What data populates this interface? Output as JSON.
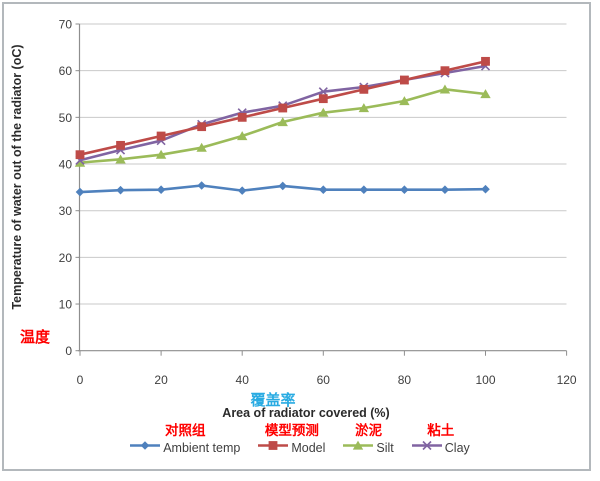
{
  "annotations": {
    "y_axis_cn": "温度",
    "x_axis_cn": "覆盖率",
    "annotation_red": "#FF0000",
    "annotation_blue": "#29ABE2"
  },
  "chart_data": {
    "type": "line",
    "x": [
      0,
      10,
      20,
      30,
      40,
      50,
      60,
      70,
      80,
      90,
      100
    ],
    "series": [
      {
        "name": "Ambient temp",
        "cn_label": "对照组",
        "color": "#4F81BD",
        "marker": "diamond",
        "values": [
          34,
          34.4,
          34.5,
          35.4,
          34.3,
          35.3,
          34.5,
          34.5,
          34.5,
          34.5,
          34.6
        ]
      },
      {
        "name": "Model",
        "cn_label": "模型预测",
        "color": "#BE4B48",
        "marker": "square",
        "values": [
          42,
          44,
          46,
          48,
          50,
          52,
          54,
          56,
          58,
          60,
          62
        ]
      },
      {
        "name": "Silt",
        "cn_label": "淤泥",
        "color": "#9BBB59",
        "marker": "triangle",
        "values": [
          40.3,
          41,
          42,
          43.5,
          46,
          49,
          51,
          52,
          53.5,
          56,
          55
        ]
      },
      {
        "name": "Clay",
        "cn_label": "粘土",
        "color": "#8064A2",
        "marker": "x",
        "values": [
          40.8,
          43,
          45,
          48.5,
          51,
          52.5,
          55.5,
          56.5,
          58,
          59.5,
          61
        ]
      }
    ],
    "title": "",
    "xlabel": "Area of radiator covered (%)",
    "ylabel": "Temperature of water out of the radiator (oC)",
    "xlim": [
      0,
      120
    ],
    "ylim": [
      0,
      70
    ],
    "x_ticks": [
      0,
      20,
      40,
      60,
      80,
      100,
      120
    ],
    "y_ticks": [
      0,
      10,
      20,
      30,
      40,
      50,
      60,
      70
    ],
    "grid": "horizontal",
    "legend_position": "bottom"
  }
}
